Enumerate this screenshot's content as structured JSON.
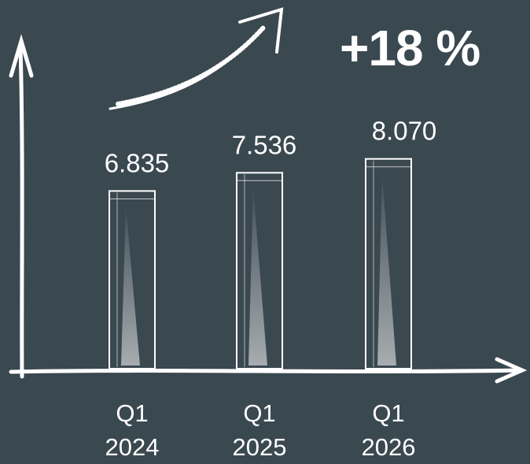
{
  "chart_data": {
    "type": "bar",
    "annotation": "+18 %",
    "categories": [
      "Q1 2024",
      "Q1 2025",
      "Q1 2026"
    ],
    "values": [
      6.835,
      7.536,
      8.07
    ],
    "value_labels": [
      "6.835",
      "7.536",
      "8.070"
    ],
    "color": "#3a4850"
  }
}
